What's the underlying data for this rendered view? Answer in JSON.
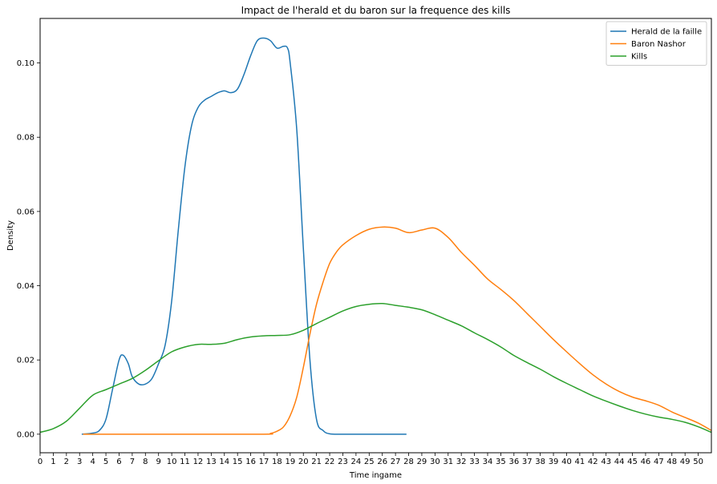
{
  "chart_data": {
    "type": "line",
    "title": "Impact de l'herald et du baron sur la frequence des kills",
    "xlabel": "Time ingame",
    "ylabel": "Density",
    "xlim": [
      0,
      51
    ],
    "ylim": [
      -0.005,
      0.112
    ],
    "x_ticks": [
      0,
      1,
      2,
      3,
      4,
      5,
      6,
      7,
      8,
      9,
      10,
      11,
      12,
      13,
      14,
      15,
      16,
      17,
      18,
      19,
      20,
      21,
      22,
      23,
      24,
      25,
      26,
      27,
      28,
      29,
      30,
      31,
      32,
      33,
      34,
      35,
      36,
      37,
      38,
      39,
      40,
      41,
      42,
      43,
      44,
      45,
      46,
      47,
      48,
      49,
      50
    ],
    "y_ticks": [
      0.0,
      0.02,
      0.04,
      0.06,
      0.08,
      0.1
    ],
    "y_tick_labels": [
      "0.00",
      "0.02",
      "0.04",
      "0.06",
      "0.08",
      "0.10"
    ],
    "grid": false,
    "legend_position": "top-right",
    "series": [
      {
        "name": "Herald de la faille",
        "color": "#1f77b4",
        "x": [
          3.2,
          4,
          4.5,
          5,
          5.5,
          6,
          6.3,
          6.7,
          7,
          7.5,
          8,
          8.5,
          9,
          9.5,
          10,
          10.5,
          11,
          11.5,
          12,
          12.5,
          13,
          13.5,
          14,
          14.5,
          15,
          15.5,
          16,
          16.5,
          17,
          17.5,
          18,
          18.5,
          18.8,
          19,
          19.5,
          20,
          20.5,
          21,
          21.5,
          22,
          23,
          24,
          26,
          27.8
        ],
        "y": [
          0,
          0.0003,
          0.001,
          0.004,
          0.012,
          0.02,
          0.0213,
          0.019,
          0.0155,
          0.0135,
          0.0135,
          0.015,
          0.019,
          0.024,
          0.036,
          0.055,
          0.072,
          0.083,
          0.088,
          0.09,
          0.091,
          0.092,
          0.0925,
          0.092,
          0.093,
          0.097,
          0.102,
          0.106,
          0.1067,
          0.106,
          0.104,
          0.1045,
          0.104,
          0.1,
          0.082,
          0.05,
          0.02,
          0.004,
          0.001,
          0.0001,
          0,
          0,
          0,
          0
        ]
      },
      {
        "name": "Baron Nashor",
        "color": "#ff7f0e",
        "x": [
          3.3,
          10,
          17,
          17.5,
          18,
          18.5,
          19,
          19.5,
          20,
          20.5,
          21,
          21.5,
          22,
          22.5,
          23,
          24,
          25,
          26,
          27,
          28,
          29,
          30,
          31,
          32,
          33,
          34,
          35,
          36,
          37,
          38,
          39,
          40,
          41,
          42,
          43,
          44,
          45,
          46,
          47,
          48,
          49,
          50,
          51
        ],
        "y": [
          0,
          0,
          0,
          0.0002,
          0.0008,
          0.002,
          0.005,
          0.01,
          0.018,
          0.027,
          0.035,
          0.041,
          0.046,
          0.049,
          0.051,
          0.0535,
          0.0552,
          0.0558,
          0.0555,
          0.0543,
          0.055,
          0.0555,
          0.053,
          0.049,
          0.0455,
          0.0418,
          0.039,
          0.036,
          0.0325,
          0.029,
          0.0255,
          0.0222,
          0.019,
          0.016,
          0.0135,
          0.0115,
          0.01,
          0.009,
          0.0078,
          0.006,
          0.0045,
          0.003,
          0.001
        ]
      },
      {
        "name": "Kills",
        "color": "#2ca02c",
        "x": [
          0,
          1,
          2,
          3,
          4,
          5,
          6,
          7,
          8,
          9,
          10,
          11,
          12,
          13,
          14,
          15,
          16,
          17,
          18,
          19,
          20,
          21,
          22,
          23,
          24,
          25,
          26,
          27,
          28,
          29,
          30,
          31,
          32,
          33,
          34,
          35,
          36,
          37,
          38,
          39,
          40,
          41,
          42,
          43,
          44,
          45,
          46,
          47,
          48,
          49,
          50,
          51
        ],
        "y": [
          0.0005,
          0.0015,
          0.0035,
          0.007,
          0.0105,
          0.012,
          0.0135,
          0.015,
          0.0172,
          0.0198,
          0.0222,
          0.0235,
          0.0242,
          0.0242,
          0.0245,
          0.0255,
          0.0262,
          0.0265,
          0.0266,
          0.0268,
          0.028,
          0.0298,
          0.0315,
          0.0332,
          0.0344,
          0.035,
          0.0352,
          0.0347,
          0.0342,
          0.0335,
          0.0322,
          0.0307,
          0.0292,
          0.0273,
          0.0255,
          0.0235,
          0.0212,
          0.0193,
          0.0175,
          0.0155,
          0.0137,
          0.012,
          0.0103,
          0.0089,
          0.0076,
          0.0064,
          0.0054,
          0.0046,
          0.004,
          0.0032,
          0.002,
          0.0005
        ]
      }
    ]
  }
}
